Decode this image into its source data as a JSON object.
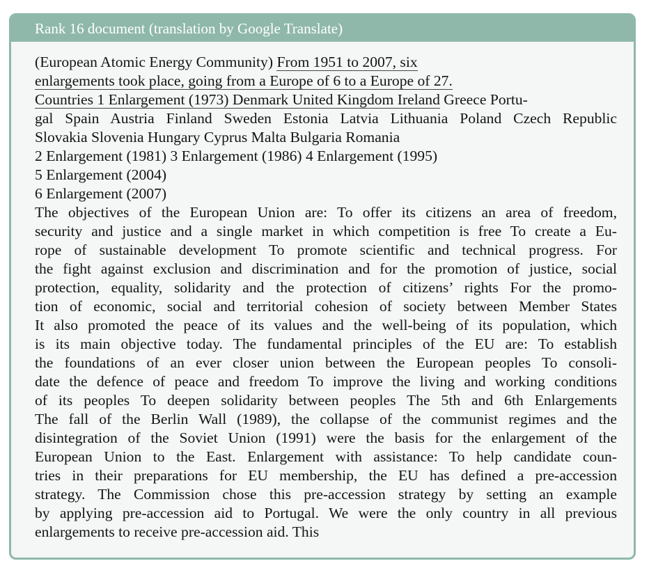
{
  "header": {
    "title": "Rank 16 document (translation by Google Translate)"
  },
  "body": {
    "line1_plain": "(European Atomic Energy Community) ",
    "line1_underlined": "From 1951 to 2007, six",
    "line2_underlined": "enlargements took place, going from a Europe of 6 to a Europe of 27.",
    "line3_underlined": "Countries 1 Enlargement (1973) Denmark United Kingdom Ireland",
    "line3_plain": " Greece Portu-",
    "lines": [
      "gal Spain Austria Finland Sweden Estonia Latvia Lithuania Poland Czech Republic",
      "Slovakia Slovenia Hungary Cyprus Malta Bulgaria Romania",
      "2 Enlargement (1981) 3 Enlargement (1986) 4 Enlargement (1995)",
      "5 Enlargement (2004)",
      "6 Enlargement (2007)",
      "The objectives of the European Union are: To offer its citizens an area of freedom,",
      "security and justice and a single market in which competition is free To create a Eu-",
      "rope of sustainable development To promote scientific and technical progress. For",
      "the fight against exclusion and discrimination and for the promotion of justice, social",
      "protection, equality, solidarity and the protection of citizens’ rights For the promo-",
      "tion of economic, social and territorial cohesion of society between Member States",
      "It also promoted the peace of its values and the well-being of its population, which",
      "is its main objective today. The fundamental principles of the EU are: To establish",
      "the foundations of an ever closer union between the European peoples To consoli-",
      "date the defence of peace and freedom To improve the living and working conditions",
      "of its peoples To deepen solidarity between peoples The 5th and 6th Enlargements",
      "The fall of the Berlin Wall (1989), the collapse of the communist regimes and the",
      "disintegration of the Soviet Union (1991) were the basis for the enlargement of the",
      "European Union to the East. Enlargement with assistance: To help candidate coun-",
      "tries in their preparations for EU membership, the EU has defined a pre-accession",
      "strategy. The Commission chose this pre-accession strategy by setting an example",
      "by applying pre-accession aid to Portugal. We were the only country in all previous",
      "enlargements to receive pre-accession aid. This"
    ]
  }
}
